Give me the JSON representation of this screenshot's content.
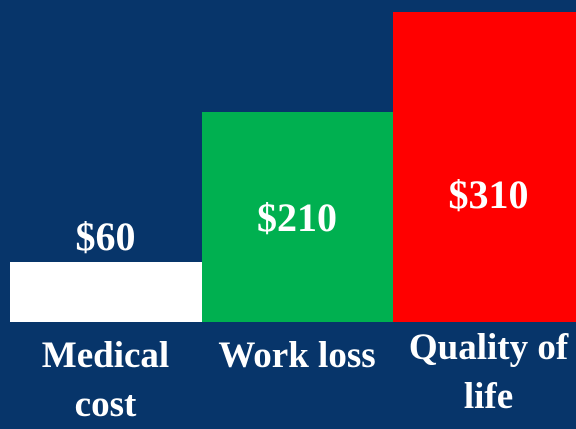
{
  "chart_data": {
    "type": "bar",
    "categories": [
      "Medical cost",
      "Work loss",
      "Quality of life"
    ],
    "values": [
      60,
      210,
      310
    ],
    "value_labels": [
      "$60",
      "$210",
      "$310"
    ],
    "colors": [
      "#ffffff",
      "#00b050",
      "#ff0000"
    ]
  }
}
